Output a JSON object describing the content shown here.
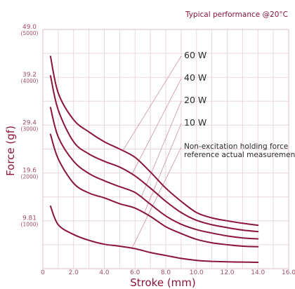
{
  "chart_data": {
    "type": "line",
    "title": "",
    "note": "Typical performance @20°C",
    "xlabel": "Stroke (mm)",
    "ylabel": "Force (gf)",
    "xlim": [
      0,
      16.0
    ],
    "ylim": [
      0,
      49.0
    ],
    "x_ticks": [
      "0",
      "2.0",
      "4.0",
      "6.0",
      "8.0",
      "10.0",
      "12.0",
      "14.0",
      "16.0"
    ],
    "y_ticks": [
      {
        "value": 9.81,
        "label": "9.81",
        "sub": "(1000)"
      },
      {
        "value": 19.6,
        "label": "19.6",
        "sub": "(2000)"
      },
      {
        "value": 29.4,
        "label": "29.4",
        "sub": "(3000)"
      },
      {
        "value": 39.2,
        "label": "39.2",
        "sub": "(4000)"
      },
      {
        "value": 49.0,
        "label": "49.0",
        "sub": "(5000)"
      }
    ],
    "grid": true,
    "series": [
      {
        "name": "60 W",
        "x": [
          0.5,
          1.0,
          2.0,
          3.0,
          4.0,
          5.0,
          6.0,
          7.0,
          8.0,
          9.0,
          10.0,
          11.0,
          12.0,
          13.0,
          14.0
        ],
        "y": [
          43.5,
          36.0,
          30.5,
          28.0,
          26.0,
          24.5,
          22.8,
          19.8,
          16.5,
          13.8,
          11.5,
          10.4,
          9.8,
          9.3,
          8.9
        ]
      },
      {
        "name": "40 W",
        "x": [
          0.5,
          1.0,
          2.0,
          3.0,
          4.0,
          5.0,
          6.0,
          7.0,
          8.0,
          9.0,
          10.0,
          11.0,
          12.0,
          13.0,
          14.0
        ],
        "y": [
          39.5,
          32.5,
          26.0,
          23.5,
          22.0,
          20.8,
          19.0,
          16.5,
          13.8,
          11.5,
          9.9,
          9.0,
          8.4,
          7.9,
          7.6
        ]
      },
      {
        "name": "20 W",
        "x": [
          0.5,
          1.0,
          2.0,
          3.0,
          4.0,
          5.0,
          6.0,
          7.0,
          8.0,
          9.0,
          10.0,
          11.0,
          12.0,
          13.0,
          14.0
        ],
        "y": [
          33.0,
          27.0,
          22.0,
          19.5,
          18.0,
          16.8,
          15.6,
          13.2,
          10.8,
          9.1,
          8.0,
          7.3,
          6.7,
          6.3,
          6.1
        ]
      },
      {
        "name": "10 W",
        "x": [
          0.5,
          1.0,
          2.0,
          3.0,
          4.0,
          5.0,
          6.0,
          7.0,
          8.0,
          9.0,
          10.0,
          11.0,
          12.0,
          13.0,
          14.0
        ],
        "y": [
          27.5,
          22.5,
          17.5,
          15.5,
          14.5,
          13.3,
          12.4,
          10.7,
          8.6,
          7.2,
          6.0,
          5.3,
          4.9,
          4.6,
          4.5
        ]
      },
      {
        "name": "Non-excitation holding force reference actual measurement",
        "x": [
          0.5,
          1.0,
          2.0,
          3.0,
          4.0,
          5.0,
          6.0,
          7.0,
          8.0,
          9.0,
          10.0,
          11.0,
          12.0,
          13.0,
          14.0
        ],
        "y": [
          12.8,
          9.0,
          7.0,
          5.8,
          5.0,
          4.6,
          4.1,
          3.3,
          2.7,
          2.1,
          1.7,
          1.5,
          1.4,
          1.35,
          1.3
        ]
      }
    ],
    "legend": {
      "placement": "inline-right",
      "labels": [
        "60 W",
        "40 W",
        "20 W",
        "10 W"
      ],
      "non_excitation_line1": "Non-excitation holding force",
      "non_excitation_line2": "reference actual measurement"
    },
    "colors": {
      "curve": "#8a1538",
      "grid": "#ead7dc",
      "text": "#9c4f63"
    }
  }
}
